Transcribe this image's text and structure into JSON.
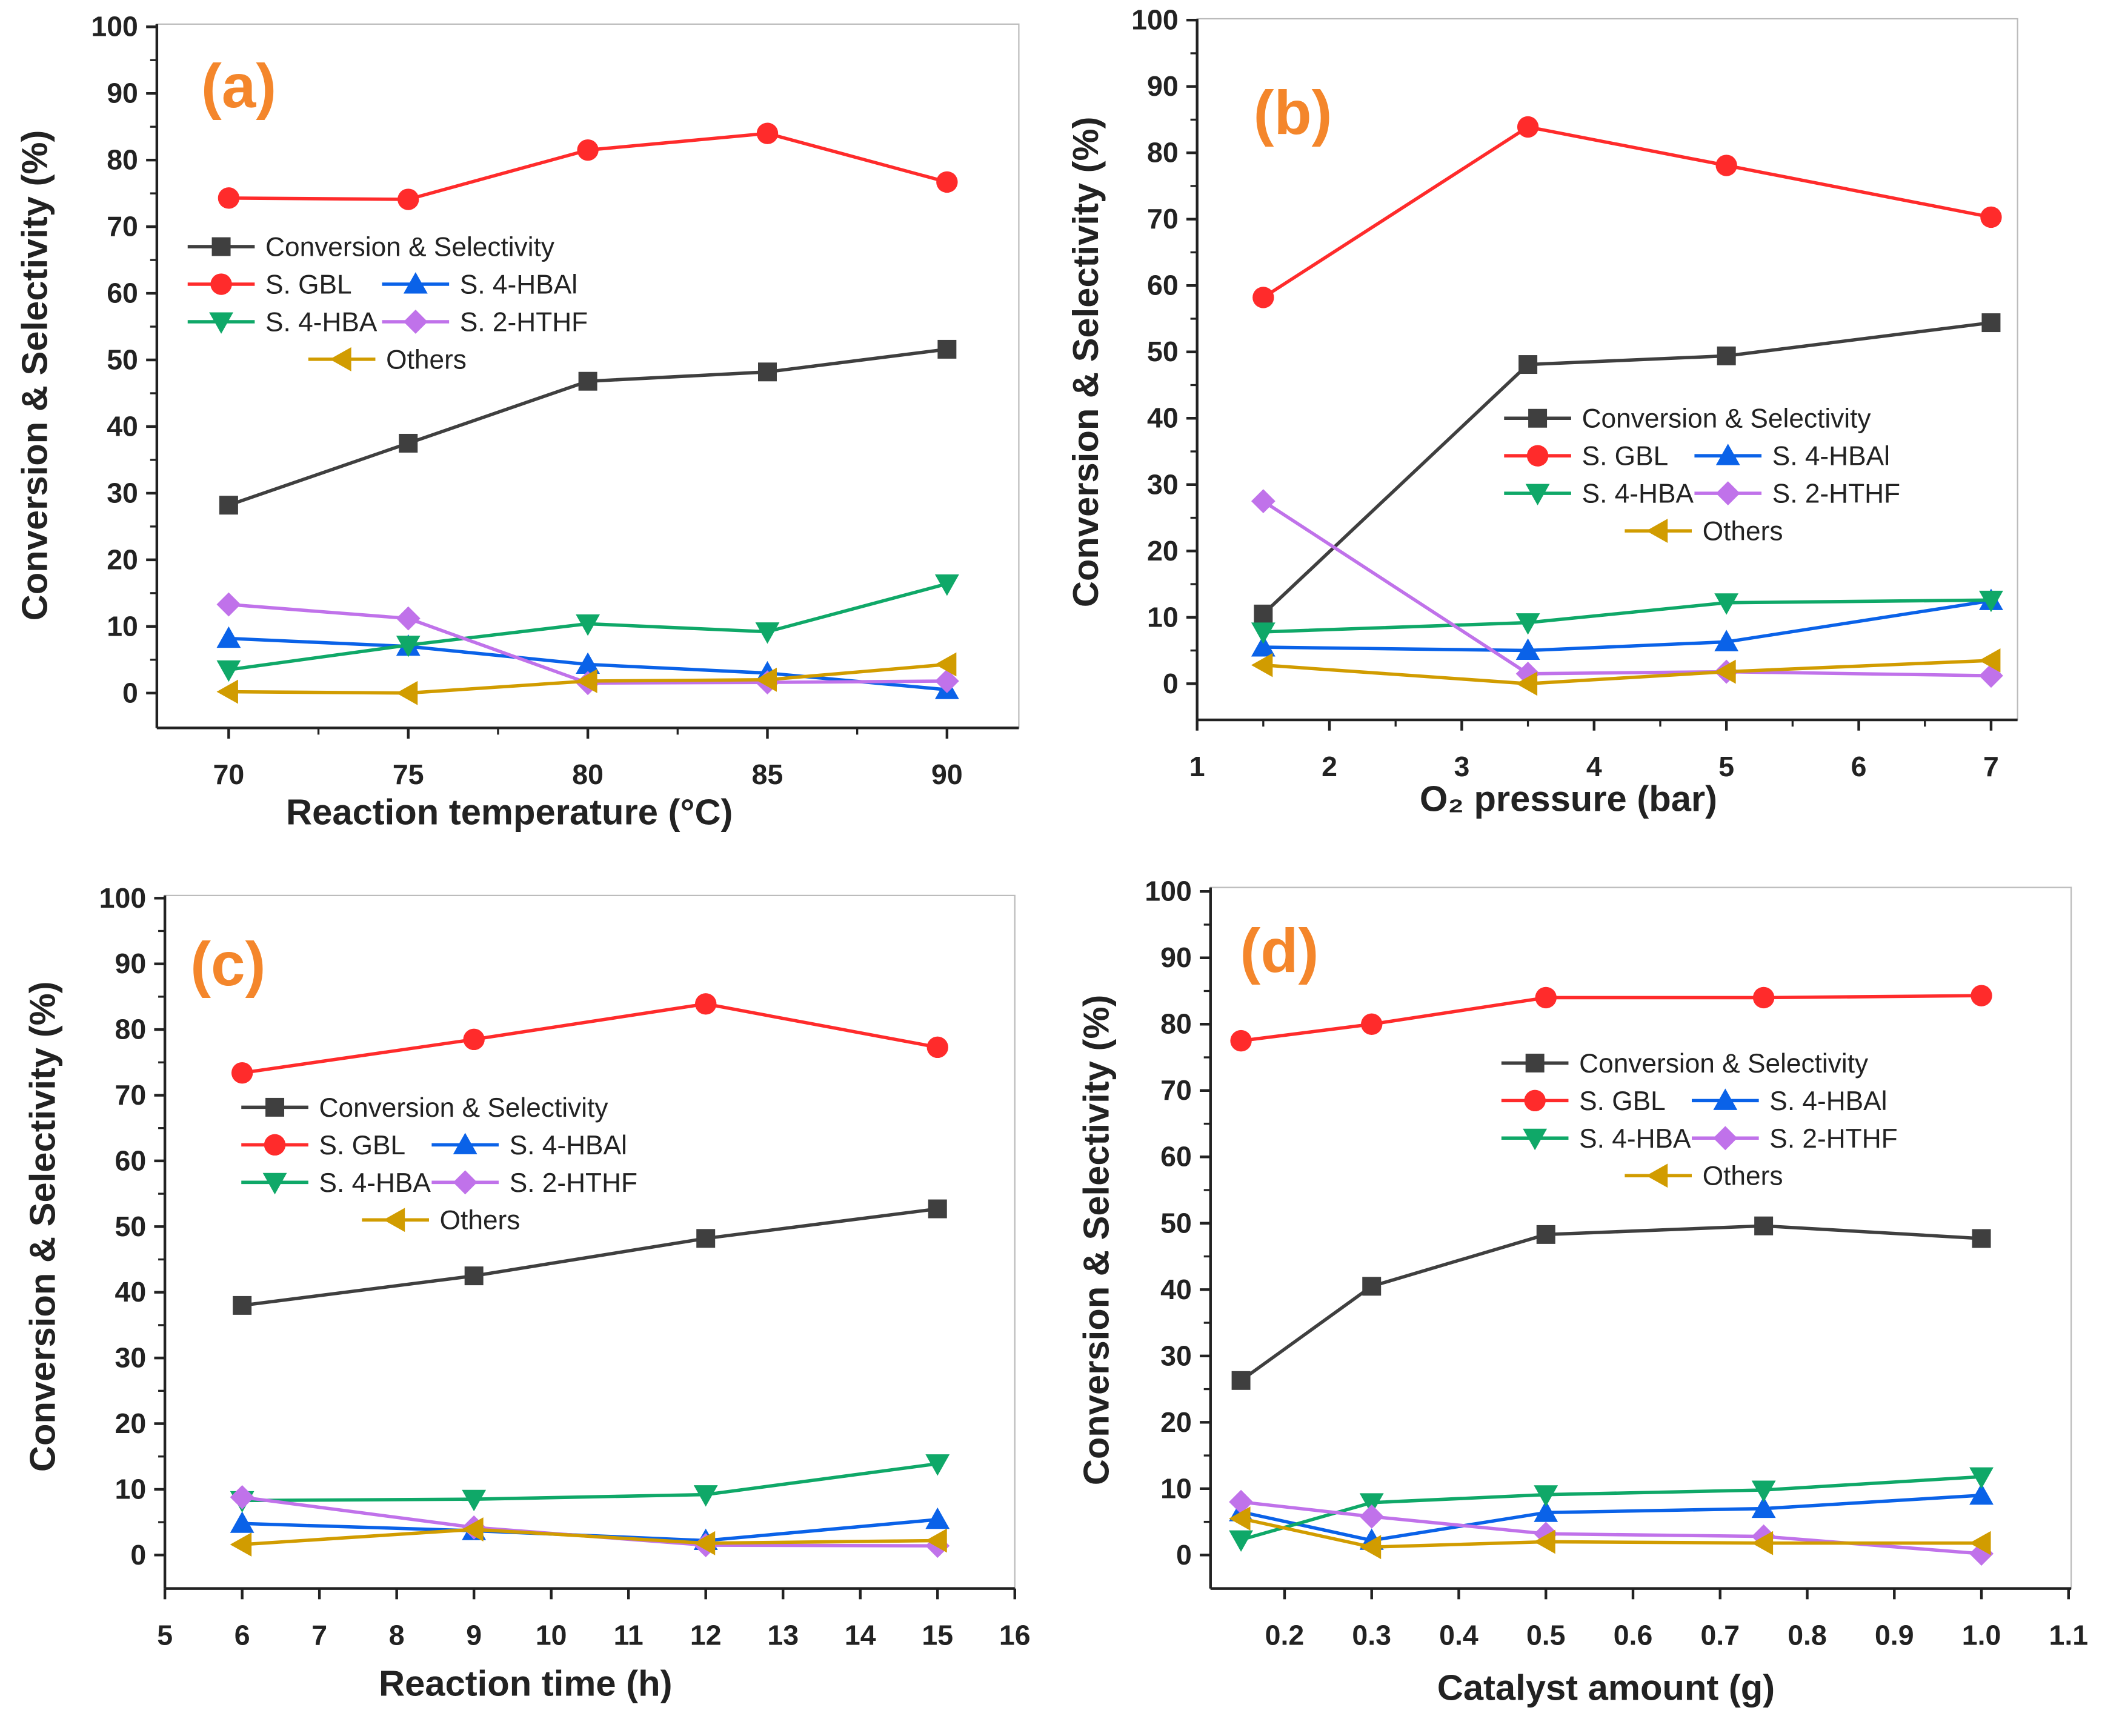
{
  "series_style": [
    {
      "key": "conv",
      "color": "#3f3f3f",
      "marker": "square"
    },
    {
      "key": "gbl",
      "color": "#ff2b2b",
      "marker": "circle"
    },
    {
      "key": "hbal",
      "color": "#0a62e8",
      "marker": "triangle-up"
    },
    {
      "key": "hba",
      "color": "#0fa868",
      "marker": "triangle-down"
    },
    {
      "key": "hthf",
      "color": "#c072ea",
      "marker": "diamond"
    },
    {
      "key": "others",
      "color": "#d19c00",
      "marker": "triangle-left"
    }
  ],
  "chart_data": [
    {
      "type": "line",
      "panel_label": "(a)",
      "xlabel": "Reaction temperature (°C)",
      "ylabel": "Conversion  & Selectivity (%)",
      "xlim": [
        68,
        92
      ],
      "ylim": [
        -5,
        100
      ],
      "xticks": [
        70,
        75,
        80,
        85,
        90
      ],
      "yticks": [
        0,
        10,
        20,
        30,
        40,
        50,
        60,
        70,
        80,
        90,
        100
      ],
      "x": [
        70,
        75,
        80,
        85,
        90
      ],
      "series": [
        {
          "name": "Conversion  & Selectivity",
          "values": [
            28.2,
            37.5,
            46.8,
            48.2,
            51.6
          ]
        },
        {
          "name": "S. GBL",
          "values": [
            74.3,
            74.1,
            81.5,
            84.0,
            76.7
          ]
        },
        {
          "name": "S. 4-HBAl",
          "values": [
            8.2,
            7.0,
            4.3,
            3.0,
            0.5
          ]
        },
        {
          "name": "S. 4-HBA",
          "values": [
            3.5,
            7.2,
            10.4,
            9.2,
            16.4
          ]
        },
        {
          "name": "S. 2-HTHF",
          "values": [
            13.3,
            11.2,
            1.5,
            1.6,
            1.8
          ]
        },
        {
          "name": "Others",
          "values": [
            0.2,
            0.0,
            1.8,
            2.0,
            4.3
          ]
        }
      ],
      "legend": "upper-left"
    },
    {
      "type": "line",
      "panel_label": "(b)",
      "xlabel": "O₂ pressure (bar)",
      "ylabel": "Conversion & Selectivity (%)",
      "xlim": [
        1,
        7.2
      ],
      "ylim": [
        -5,
        100
      ],
      "xticks": [
        1,
        2,
        3,
        4,
        5,
        6,
        7
      ],
      "yticks": [
        0,
        10,
        20,
        30,
        40,
        50,
        60,
        70,
        80,
        90,
        100
      ],
      "x": [
        1.5,
        3.5,
        5,
        7
      ],
      "series": [
        {
          "name": "Conversion & Selectivity",
          "values": [
            10.5,
            48.1,
            49.4,
            54.4
          ]
        },
        {
          "name": "S. GBL",
          "values": [
            58.2,
            83.9,
            78.1,
            70.3
          ]
        },
        {
          "name": "S. 4-HBAl",
          "values": [
            5.5,
            5.0,
            6.3,
            12.5
          ]
        },
        {
          "name": "S. 4-HBA",
          "values": [
            7.8,
            9.2,
            12.2,
            12.6
          ]
        },
        {
          "name": "S. 2-HTHF",
          "values": [
            27.5,
            1.5,
            1.8,
            1.2
          ]
        },
        {
          "name": "Others",
          "values": [
            2.8,
            0.0,
            1.8,
            3.5
          ]
        }
      ],
      "legend": "center-right"
    },
    {
      "type": "line",
      "panel_label": "(c)",
      "xlabel": "Reaction time (h)",
      "ylabel": "Conversion  & Selectivity (%)",
      "xlim": [
        5,
        16
      ],
      "ylim": [
        -5,
        100
      ],
      "xticks": [
        5,
        6,
        7,
        8,
        9,
        10,
        11,
        12,
        13,
        14,
        15,
        16
      ],
      "yticks": [
        0,
        10,
        20,
        30,
        40,
        50,
        60,
        70,
        80,
        90,
        100
      ],
      "x": [
        6,
        9,
        12,
        15
      ],
      "series": [
        {
          "name": "Conversion  & Selectivity",
          "values": [
            38.0,
            42.5,
            48.2,
            52.7
          ]
        },
        {
          "name": "S. GBL",
          "values": [
            73.4,
            78.5,
            83.9,
            77.3
          ]
        },
        {
          "name": "S. 4-HBAl",
          "values": [
            4.8,
            3.7,
            2.2,
            5.4
          ]
        },
        {
          "name": "S. 4-HBA",
          "values": [
            8.3,
            8.5,
            9.2,
            13.9
          ]
        },
        {
          "name": "S. 2-HTHF",
          "values": [
            8.8,
            4.2,
            1.5,
            1.4
          ]
        },
        {
          "name": "Others",
          "values": [
            1.6,
            3.9,
            1.8,
            2.2
          ]
        }
      ],
      "legend": "upper-left"
    },
    {
      "type": "line",
      "panel_label": "(d)",
      "xlabel": "Catalyst amount (g)",
      "ylabel": "Conversion & Selectivity (%)",
      "xlim": [
        0.115,
        1.103
      ],
      "ylim": [
        -5,
        100
      ],
      "xticks": [
        0.2,
        0.3,
        0.4,
        0.5,
        0.6,
        0.7,
        0.8,
        0.9,
        1.0,
        1.1
      ],
      "yticks": [
        0,
        10,
        20,
        30,
        40,
        50,
        60,
        70,
        80,
        90,
        100
      ],
      "x": [
        0.15,
        0.3,
        0.5,
        0.75,
        1.0
      ],
      "series": [
        {
          "name": "Conversion & Selectivity",
          "values": [
            26.3,
            40.5,
            48.3,
            49.6,
            47.7
          ]
        },
        {
          "name": "S. GBL",
          "values": [
            77.5,
            80.0,
            84.0,
            84.0,
            84.3
          ]
        },
        {
          "name": "S. 4-HBAl",
          "values": [
            6.5,
            2.2,
            6.4,
            7.0,
            9.0
          ]
        },
        {
          "name": "S. 4-HBA",
          "values": [
            2.3,
            7.9,
            9.1,
            9.8,
            11.8
          ]
        },
        {
          "name": "S. 2-HTHF",
          "values": [
            8.0,
            5.8,
            3.2,
            2.8,
            0.2
          ]
        },
        {
          "name": "Others",
          "values": [
            5.5,
            1.2,
            2.0,
            1.8,
            1.8
          ]
        }
      ],
      "legend": "center-right"
    }
  ]
}
